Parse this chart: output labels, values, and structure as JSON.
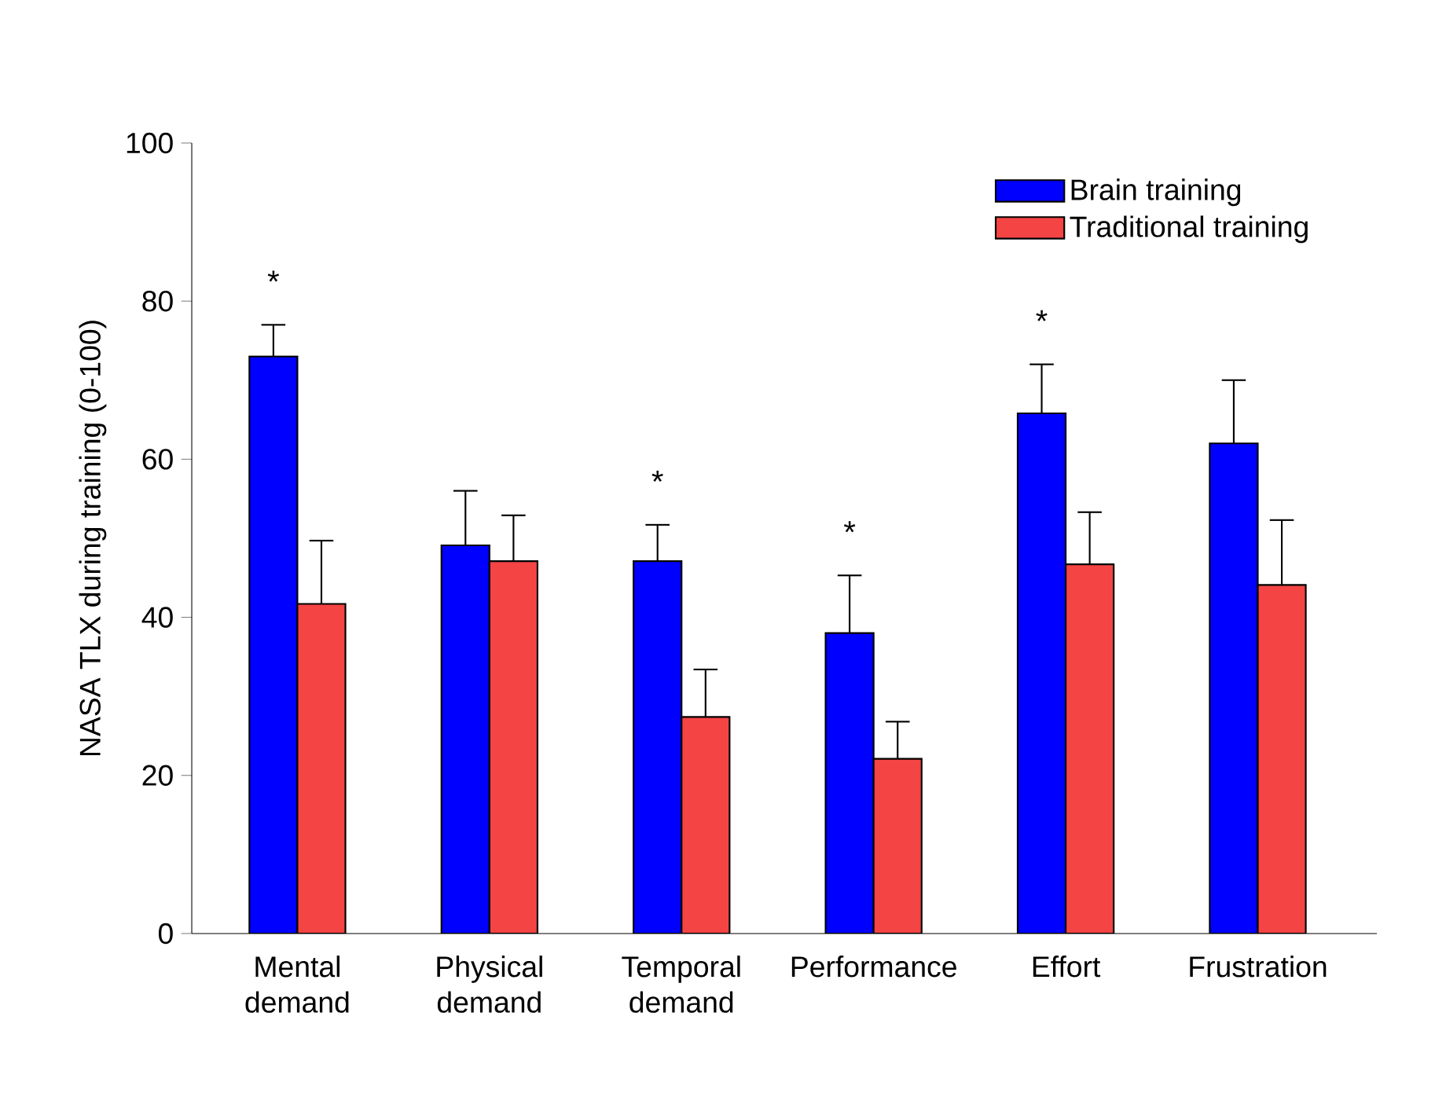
{
  "chart_data": {
    "type": "bar",
    "ylabel": "NASA TLX during training (0-100)",
    "categories": [
      "Mental demand",
      "Physical demand",
      "Temporal demand",
      "Performance",
      "Effort",
      "Frustration"
    ],
    "series": [
      {
        "name": "Brain training",
        "color": "#0000ff",
        "values": [
          73,
          49.1,
          47.1,
          38,
          65.8,
          62
        ],
        "errors": [
          [
            73,
            77
          ],
          [
            49.1,
            56
          ],
          [
            47.1,
            51.7
          ],
          [
            38,
            45.3
          ],
          [
            65.8,
            72
          ],
          [
            62,
            70
          ]
        ]
      },
      {
        "name": "Traditional training",
        "color": "#f44444",
        "values": [
          41.7,
          47.1,
          27.4,
          22.1,
          46.7,
          44.1
        ],
        "errors": [
          [
            41.7,
            49.7
          ],
          [
            47.1,
            52.9
          ],
          [
            27.4,
            33.4
          ],
          [
            22.1,
            26.8
          ],
          [
            46.7,
            53.3
          ],
          [
            44.1,
            52.3
          ]
        ]
      }
    ],
    "ylim": [
      0,
      100
    ],
    "yticks": [
      0,
      20,
      40,
      60,
      80,
      100
    ],
    "annotations": [
      "*",
      "*",
      "*",
      "*"
    ],
    "legend": "top right"
  }
}
